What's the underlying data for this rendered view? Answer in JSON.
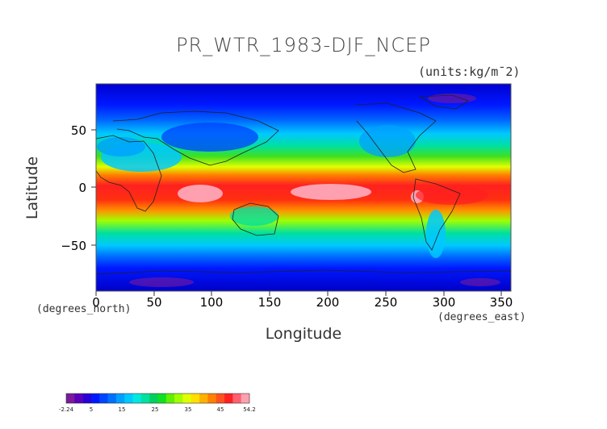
{
  "title": "PR_WTR_1983-DJF_NCEP",
  "units_label": "(units:kg/m¯2)",
  "axes": {
    "x_label": "Longitude",
    "y_label": "Latitude",
    "x_note": "(degrees_east)",
    "y_note": "(degrees_north)",
    "x_ticks": [
      "0",
      "50",
      "100",
      "150",
      "200",
      "250",
      "300",
      "350"
    ],
    "y_ticks": [
      "50",
      "0",
      "−50"
    ]
  },
  "colorbar": {
    "labels": [
      "-2.24",
      "5",
      "15",
      "25",
      "35",
      "45",
      "54.2"
    ],
    "colors": [
      "#7a1a9c",
      "#5a00b8",
      "#2a00d6",
      "#0018ff",
      "#0046ff",
      "#0070ff",
      "#00a0ff",
      "#00c8ff",
      "#00e8e0",
      "#00e0a0",
      "#00d060",
      "#10e020",
      "#60f000",
      "#a0ff00",
      "#e0ff00",
      "#ffe000",
      "#ffb000",
      "#ff8000",
      "#ff5020",
      "#ff2020",
      "#ff6070",
      "#ffa0b0"
    ]
  },
  "chart_data": {
    "type": "heatmap",
    "title": "PR_WTR_1983-DJF_NCEP",
    "xlabel": "Longitude",
    "ylabel": "Latitude",
    "xlim": [
      0,
      358
    ],
    "ylim": [
      -90,
      90
    ],
    "value_range": [
      -2.24,
      54.2
    ],
    "units": "kg/m^2"
  }
}
